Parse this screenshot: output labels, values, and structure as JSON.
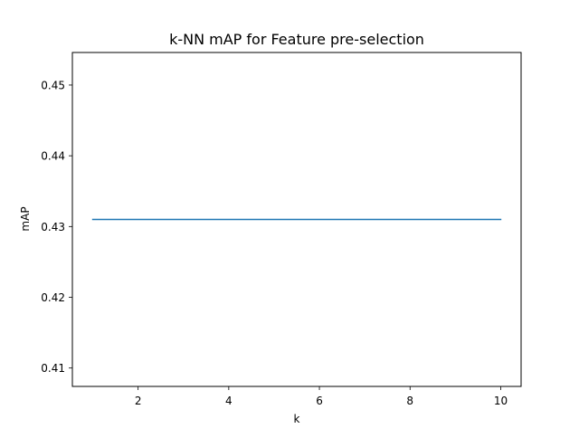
{
  "chart_data": {
    "type": "line",
    "title": "k-NN mAP for Feature pre-selection",
    "xlabel": "k",
    "ylabel": "mAP",
    "x": [
      1,
      2,
      3,
      4,
      5,
      6,
      7,
      8,
      9,
      10
    ],
    "series": [
      {
        "values": [
          0.431,
          0.431,
          0.431,
          0.431,
          0.431,
          0.431,
          0.431,
          0.431,
          0.431,
          0.431
        ],
        "color": "#1f77b4"
      }
    ],
    "xlim": [
      0.55,
      10.45
    ],
    "ylim": [
      0.4074,
      0.4546
    ],
    "xticks": [
      2,
      4,
      6,
      8,
      10
    ],
    "xtick_labels": [
      "2",
      "4",
      "6",
      "8",
      "10"
    ],
    "yticks": [
      0.41,
      0.42,
      0.43,
      0.44,
      0.45
    ],
    "ytick_labels": [
      "0.41",
      "0.42",
      "0.43",
      "0.44",
      "0.45"
    ],
    "grid": false,
    "legend": "none"
  }
}
